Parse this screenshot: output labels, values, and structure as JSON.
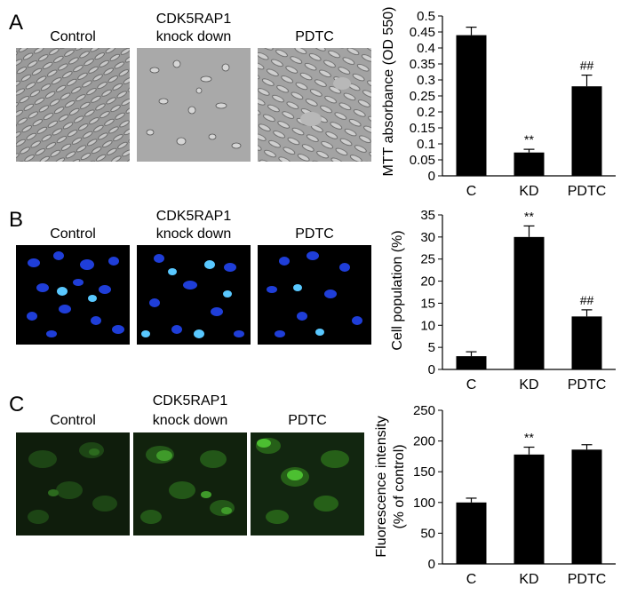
{
  "panels": [
    {
      "letter": "A",
      "labels": {
        "control": "Control",
        "kd_line1": "CDK5RAP1",
        "kd_line2": "knock down",
        "pdtc": "PDTC"
      },
      "image_style": "phase-contrast",
      "chart_data": {
        "type": "bar",
        "categories": [
          "C",
          "KD",
          "PDTC"
        ],
        "values": [
          0.44,
          0.073,
          0.28
        ],
        "errors": [
          0.025,
          0.01,
          0.035
        ],
        "annotations": [
          "",
          "**",
          "##"
        ],
        "ylabel": "MTT absorbance (OD 550)",
        "ylim": [
          0,
          0.5
        ],
        "yticks": [
          "0",
          "0.05",
          "0.1",
          "0.15",
          "0.2",
          "0.25",
          "0.3",
          "0.35",
          "0.4",
          "0.45",
          "0.5"
        ],
        "bar_color": "#000000"
      }
    },
    {
      "letter": "B",
      "labels": {
        "control": "Control",
        "kd_line1": "CDK5RAP1",
        "kd_line2": "knock down",
        "pdtc": "PDTC"
      },
      "image_style": "blue-nuclei",
      "chart_data": {
        "type": "bar",
        "categories": [
          "C",
          "KD",
          "PDTC"
        ],
        "values": [
          3,
          30,
          12
        ],
        "errors": [
          1,
          2.5,
          1.5
        ],
        "annotations": [
          "",
          "**",
          "##"
        ],
        "ylabel": "Cell population (%)",
        "ylim": [
          0,
          35
        ],
        "yticks": [
          "0",
          "5",
          "10",
          "15",
          "20",
          "25",
          "30",
          "35"
        ],
        "bar_color": "#000000"
      }
    },
    {
      "letter": "C",
      "labels": {
        "control": "Control",
        "kd_line1": "CDK5RAP1",
        "kd_line2": "knock down",
        "pdtc": "PDTC"
      },
      "image_style": "green-fluorescence",
      "chart_data": {
        "type": "bar",
        "categories": [
          "C",
          "KD",
          "PDTC"
        ],
        "values": [
          100,
          178,
          186
        ],
        "errors": [
          7,
          12,
          8
        ],
        "annotations": [
          "",
          "**",
          ""
        ],
        "ylabel_line1": "Fluorescence intensity",
        "ylabel_line2": "(% of control)",
        "ylim": [
          0,
          250
        ],
        "yticks": [
          "0",
          "50",
          "100",
          "150",
          "200",
          "250"
        ],
        "bar_color": "#000000"
      }
    }
  ]
}
